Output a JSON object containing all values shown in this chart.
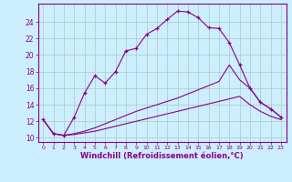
{
  "xlabel": "Windchill (Refroidissement éolien,°C)",
  "bg_color": "#cceeff",
  "grid_color": "#aaccbb",
  "line_color": "#880088",
  "xlim": [
    -0.5,
    23.5
  ],
  "ylim": [
    9.5,
    26.2
  ],
  "yticks": [
    10,
    12,
    14,
    16,
    18,
    20,
    22,
    24
  ],
  "xticks": [
    0,
    1,
    2,
    3,
    4,
    5,
    6,
    7,
    8,
    9,
    10,
    11,
    12,
    13,
    14,
    15,
    16,
    17,
    18,
    19,
    20,
    21,
    22,
    23
  ],
  "line1_x": [
    0,
    1,
    2,
    3,
    4,
    5,
    6,
    7,
    8,
    9,
    10,
    11,
    12,
    13,
    14,
    15,
    16,
    17,
    18,
    19,
    20,
    21,
    22,
    23
  ],
  "line1_y": [
    12.2,
    10.5,
    10.3,
    12.5,
    15.4,
    17.5,
    16.6,
    18.0,
    20.5,
    20.8,
    22.5,
    23.2,
    24.3,
    25.3,
    25.2,
    24.5,
    23.3,
    23.2,
    21.5,
    18.8,
    16.0,
    14.3,
    13.5,
    12.5
  ],
  "line2_x": [
    0,
    1,
    2,
    3,
    4,
    5,
    6,
    7,
    8,
    9,
    10,
    11,
    12,
    13,
    14,
    15,
    16,
    17,
    18,
    19,
    20,
    21,
    22,
    23
  ],
  "line2_y": [
    12.2,
    10.5,
    10.3,
    10.5,
    10.8,
    11.2,
    11.7,
    12.2,
    12.7,
    13.2,
    13.6,
    14.0,
    14.4,
    14.8,
    15.3,
    15.8,
    16.3,
    16.8,
    18.8,
    17.0,
    16.0,
    14.3,
    13.5,
    12.5
  ],
  "line3_x": [
    0,
    1,
    2,
    3,
    4,
    5,
    6,
    7,
    8,
    9,
    10,
    11,
    12,
    13,
    14,
    15,
    16,
    17,
    18,
    19,
    20,
    21,
    22,
    23
  ],
  "line3_y": [
    12.2,
    10.5,
    10.3,
    10.4,
    10.6,
    10.8,
    11.1,
    11.4,
    11.7,
    12.0,
    12.3,
    12.6,
    12.9,
    13.2,
    13.5,
    13.8,
    14.1,
    14.4,
    14.7,
    15.0,
    14.0,
    13.2,
    12.6,
    12.2
  ]
}
